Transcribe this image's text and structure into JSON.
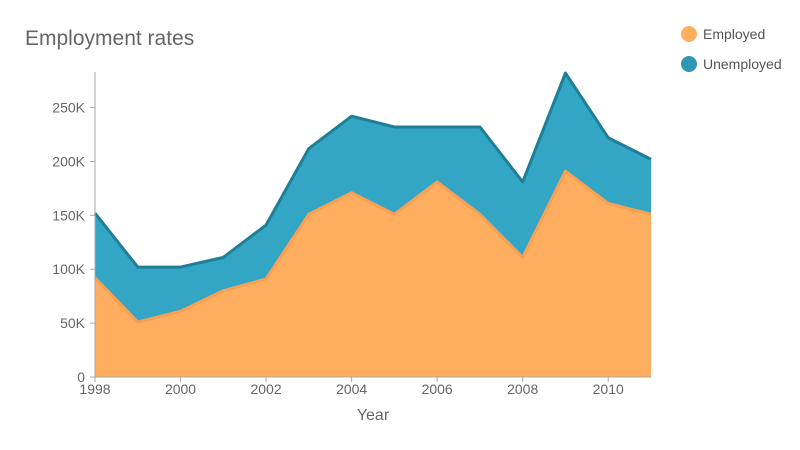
{
  "chart_data": {
    "type": "area",
    "stacked": true,
    "title": "Employment rates",
    "xlabel": "Year",
    "ylabel": "",
    "x": [
      1998,
      1999,
      2000,
      2001,
      2002,
      2003,
      2004,
      2005,
      2006,
      2007,
      2008,
      2009,
      2010,
      2011
    ],
    "series": [
      {
        "name": "Employed",
        "color": "#ffad5f",
        "line_color": "#f7a055",
        "values": [
          92000,
          51000,
          61000,
          80000,
          91000,
          151000,
          171000,
          151000,
          181000,
          151000,
          111000,
          191000,
          161000,
          151000
        ]
      },
      {
        "name": "Unemployed",
        "color": "#33a6c6",
        "line_color": "#1f7f97",
        "values": [
          60000,
          51000,
          41000,
          31000,
          50000,
          61000,
          71000,
          81000,
          51000,
          81000,
          70000,
          91000,
          61000,
          51000
        ]
      }
    ],
    "ylim": [
      0,
      283000
    ],
    "y_ticks": [
      0,
      50000,
      100000,
      150000,
      200000,
      250000
    ],
    "y_tick_labels": [
      "0",
      "50K",
      "100K",
      "150K",
      "200K",
      "250K"
    ],
    "x_ticks": [
      1998,
      2000,
      2002,
      2004,
      2006,
      2008,
      2010
    ],
    "x_tick_labels": [
      "1998",
      "2000",
      "2002",
      "2004",
      "2006",
      "2008",
      "2010"
    ],
    "legend_position": "top-right",
    "grid": false
  }
}
